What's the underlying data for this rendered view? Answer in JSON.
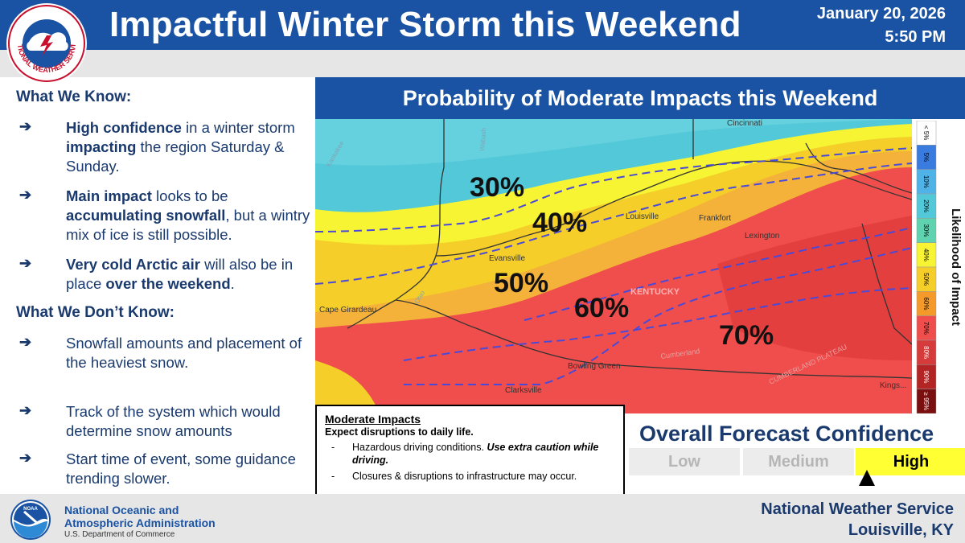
{
  "header": {
    "title": "Impactful Winter Storm this Weekend",
    "date": "January 20, 2026",
    "time": "5:50 PM",
    "nws_logo_text": "NATIONAL WEATHER SERVICE"
  },
  "left_panel": {
    "know_heading": "What We Know:",
    "know_items": [
      [
        {
          "b": true,
          "t": "High confidence"
        },
        {
          "b": false,
          "t": " in a winter storm "
        },
        {
          "b": true,
          "t": "impacting"
        },
        {
          "b": false,
          "t": " the region Saturday & Sunday."
        }
      ],
      [
        {
          "b": true,
          "t": "Main impact"
        },
        {
          "b": false,
          "t": " looks to be "
        },
        {
          "b": true,
          "t": "accumulating snowfall"
        },
        {
          "b": false,
          "t": ", but a wintry mix of ice is still possible."
        }
      ],
      [
        {
          "b": true,
          "t": "Very cold Arctic air"
        },
        {
          "b": false,
          "t": " will also be in place "
        },
        {
          "b": true,
          "t": "over the weekend"
        },
        {
          "b": false,
          "t": "."
        }
      ]
    ],
    "dont_know_heading": "What We Don’t Know:",
    "dont_know_items": [
      "Snowfall amounts and placement of the heaviest snow.",
      "Track of the system which would determine snow amounts",
      "Start time of event, some guidance trending slower."
    ],
    "arrow_glyph": "➔"
  },
  "map": {
    "title": "Probability of Moderate Impacts this Weekend",
    "percent_labels": [
      "30%",
      "40%",
      "50%",
      "60%",
      "70%"
    ],
    "cities": [
      "Cincinnati",
      "Louisville",
      "Frankfort",
      "Lexington",
      "Evansville",
      "Cape Girardeau",
      "Bowling Green",
      "Clarksville",
      "Kings..."
    ],
    "regions": [
      "KENTUCKY",
      "CUMBERLAND PLATEAU",
      "Cumberland",
      "Kankakee",
      "Wabash",
      "Ohio"
    ],
    "colors": {
      "teal": "#52c8d8",
      "yellow": "#f7f433",
      "gold": "#f5ce2a",
      "orange": "#f4b23a",
      "red": "#ef4e4c",
      "dark_red": "#e0393a",
      "contour": "#4a4ad8"
    }
  },
  "legend": {
    "title": "Likelihood of Impact",
    "levels": [
      {
        "label": "< 5%",
        "color": "#ffffff"
      },
      {
        "label": "5%",
        "color": "#3a7be0"
      },
      {
        "label": "10%",
        "color": "#4fb3e8"
      },
      {
        "label": "20%",
        "color": "#52c8d8"
      },
      {
        "label": "30%",
        "color": "#5fd3b0"
      },
      {
        "label": "40%",
        "color": "#f7f433"
      },
      {
        "label": "50%",
        "color": "#f5ce2a"
      },
      {
        "label": "60%",
        "color": "#f49a2a"
      },
      {
        "label": "70%",
        "color": "#ef4e4c"
      },
      {
        "label": "80%",
        "color": "#d63b3b"
      },
      {
        "label": "90%",
        "color": "#b32424"
      },
      {
        "label": "≥ 95%",
        "color": "#7a0f0f"
      }
    ]
  },
  "impacts": {
    "title": "Moderate Impacts",
    "subtitle": "Expect disruptions to daily life.",
    "items": [
      {
        "plain": "Hazardous driving conditions. ",
        "emph": "Use extra caution while driving."
      },
      {
        "plain": "Closures & disruptions to infrastructure may occur.",
        "emph": ""
      }
    ]
  },
  "confidence": {
    "title": "Overall Forecast Confidence",
    "levels": [
      "Low",
      "Medium",
      "High"
    ],
    "selected": "High"
  },
  "footer": {
    "noaa_line1": "National Oceanic and",
    "noaa_line2": "Atmospheric Administration",
    "noaa_dept": "U.S. Department of Commerce",
    "noaa_logo_text": "NOAA",
    "office_line1": "National Weather Service",
    "office_line2": "Louisville, KY"
  }
}
